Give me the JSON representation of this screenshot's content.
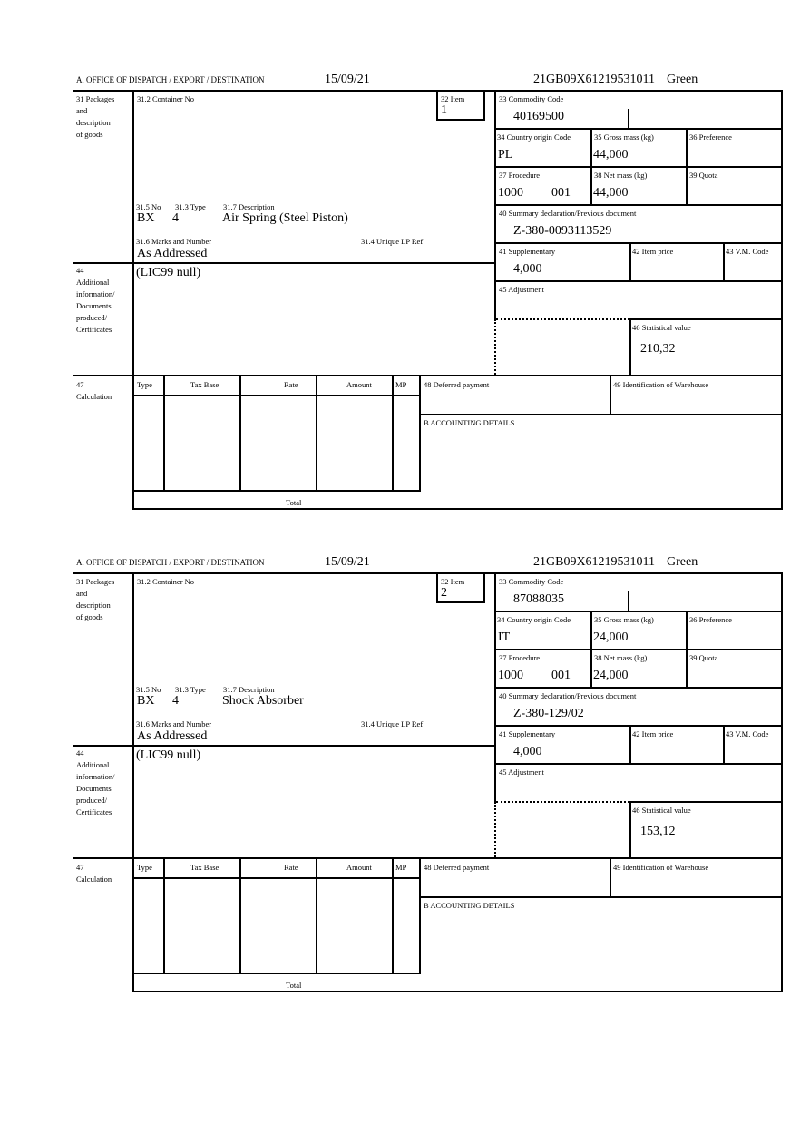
{
  "labels": {
    "office": "A. OFFICE OF DISPATCH / EXPORT / DESTINATION",
    "box31_lines": [
      "31 Packages",
      "and",
      "description",
      "of goods"
    ],
    "box31_2": "31.2 Container No",
    "box32": "32 Item",
    "box33": "33 Commodity Code",
    "box34": "34 Country origin Code",
    "box35": "35 Gross mass (kg)",
    "box36": "36 Preference",
    "box37": "37 Procedure",
    "box38": "38 Net mass (kg)",
    "box39": "39 Quota",
    "box40": "40 Summary declaration/Previous document",
    "box31_5": "31.5 No",
    "box31_3": "31.3 Type",
    "box31_7": "31.7 Description",
    "box31_6": "31.6 Marks and Number",
    "box31_4": "31.4 Unique LP Ref",
    "box41": "41 Supplementary",
    "box42": "42 Item price",
    "box43": "43 V.M. Code",
    "box44_lines": [
      "44",
      "Additional",
      "information/",
      "Documents",
      "produced/",
      "Certificates"
    ],
    "box45": "45 Adjustment",
    "box46": "46 Statistical value",
    "box47_lines": [
      "47",
      "Calculation"
    ],
    "calc_headers": [
      "Type",
      "Tax Base",
      "Rate",
      "Amount",
      "MP"
    ],
    "calc_total": "Total",
    "box48": "48 Deferred payment",
    "box49": "49 Identification of Warehouse",
    "boxB": "B ACCOUNTING DETAILS"
  },
  "items": [
    {
      "date": "15/09/21",
      "reference": "21GB09X61219531011",
      "route": "Green",
      "item_no": "1",
      "commodity_code": "40169500",
      "country_origin": "PL",
      "gross_mass": "44,000",
      "procedure": "1000",
      "procedure_add": "001",
      "net_mass": "44,000",
      "previous_document": "Z-380-0093113529",
      "pkg_kind": "BX",
      "pkg_count": "4",
      "description": "Air Spring (Steel Piston)",
      "marks": "As Addressed",
      "supplementary": "4,000",
      "additional_info": "(LIC99 null)",
      "statistical_value": "210,32"
    },
    {
      "date": "15/09/21",
      "reference": "21GB09X61219531011",
      "route": "Green",
      "item_no": "2",
      "commodity_code": "87088035",
      "country_origin": "IT",
      "gross_mass": "24,000",
      "procedure": "1000",
      "procedure_add": "001",
      "net_mass": "24,000",
      "previous_document": "Z-380-129/02",
      "pkg_kind": "BX",
      "pkg_count": "4",
      "description": "Shock Absorber",
      "marks": "As Addressed",
      "supplementary": "4,000",
      "additional_info": "(LIC99 null)",
      "statistical_value": "153,12"
    }
  ]
}
